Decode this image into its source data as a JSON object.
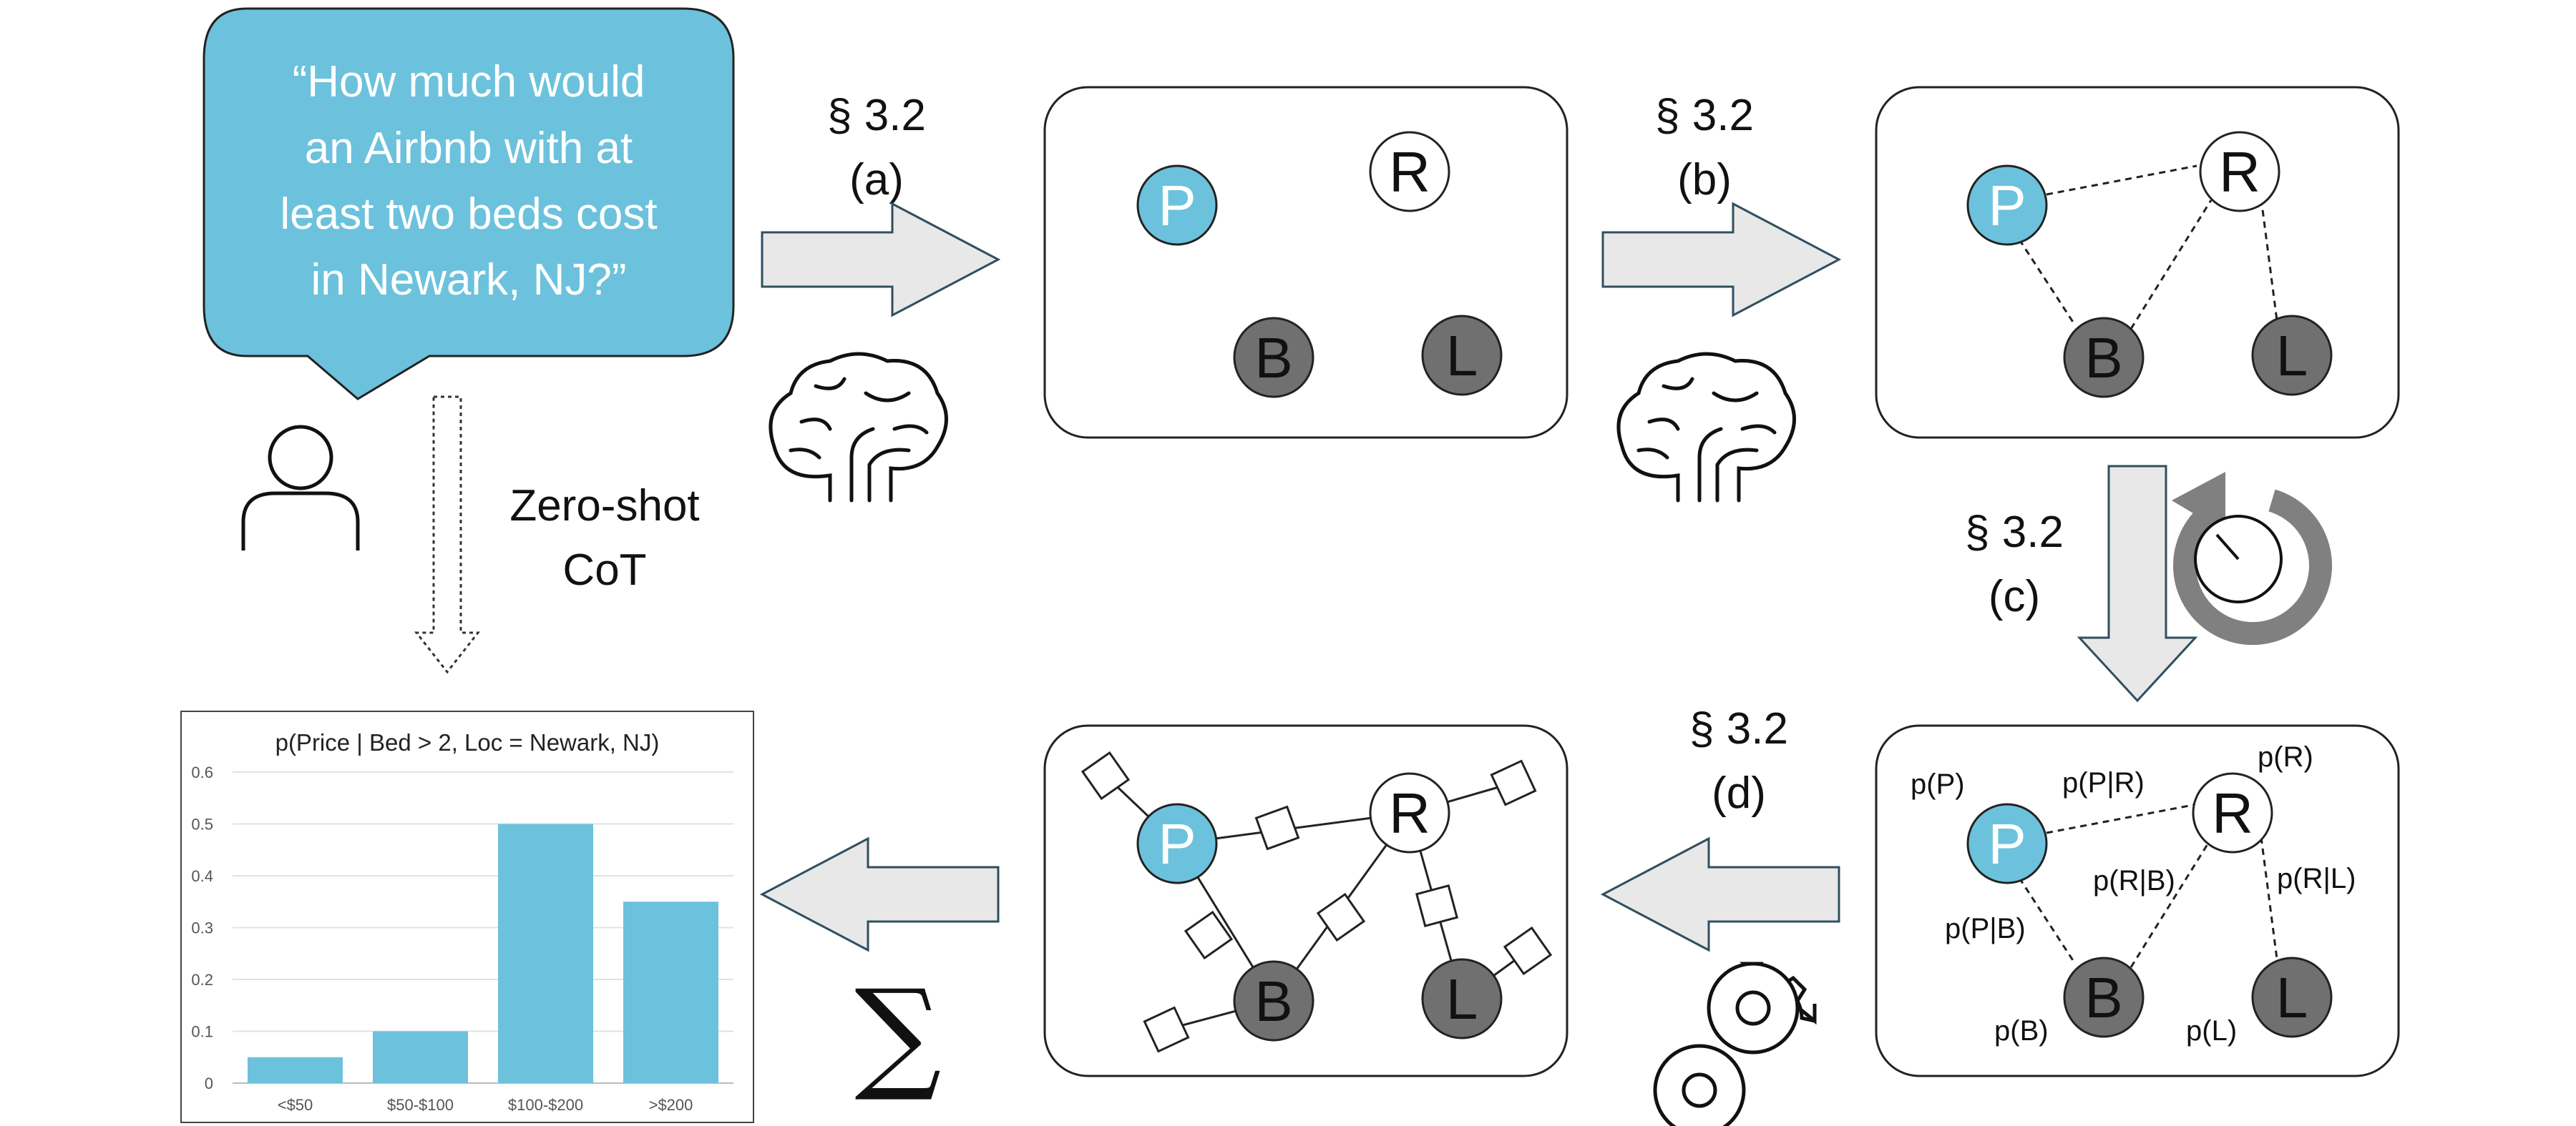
{
  "query": {
    "lines": [
      "“How much would",
      "an Airbnb with at",
      "least two beds cost",
      "in Newark, NJ?”"
    ],
    "bubble_color": "#6CC2DC"
  },
  "baseline_label": [
    "Zero-shot",
    "CoT"
  ],
  "steps": {
    "a": {
      "section": "§ 3.2",
      "tag": "(a)"
    },
    "b": {
      "section": "§ 3.2",
      "tag": "(b)"
    },
    "c": {
      "section": "§ 3.2",
      "tag": "(c)"
    },
    "d": {
      "section": "§ 3.2",
      "tag": "(d)"
    }
  },
  "nodes": {
    "P": {
      "label": "P",
      "fill": "#6CC2DC"
    },
    "R": {
      "label": "R",
      "fill": "#FFFFFF"
    },
    "B": {
      "label": "B",
      "fill": "#707070"
    },
    "L": {
      "label": "L",
      "fill": "#707070"
    }
  },
  "factors": {
    "pP": "p(P)",
    "pR": "p(R)",
    "pB": "p(B)",
    "pL": "p(L)",
    "pPR": "p(P|R)",
    "pRB": "p(R|B)",
    "pPB": "p(P|B)",
    "pRL": "p(R|L)"
  },
  "aggregate_symbol": "∑",
  "colors": {
    "arrow_fill": "#E8E8E8",
    "arrow_stroke": "#2F4F5F",
    "bar": "#6CC2DC",
    "icon_gray": "#808080"
  },
  "chart_data": {
    "type": "bar",
    "title": "p(Price | Bed > 2, Loc = Newark, NJ)",
    "categories": [
      "<$50",
      "$50-$100",
      "$100-$200",
      ">$200"
    ],
    "values": [
      0.05,
      0.1,
      0.5,
      0.35
    ],
    "ylim": [
      0,
      0.6
    ],
    "yticks": [
      "0",
      "0.1",
      "0.2",
      "0.3",
      "0.4",
      "0.5",
      "0.6"
    ],
    "xlabel": "",
    "ylabel": "",
    "grid": true
  }
}
